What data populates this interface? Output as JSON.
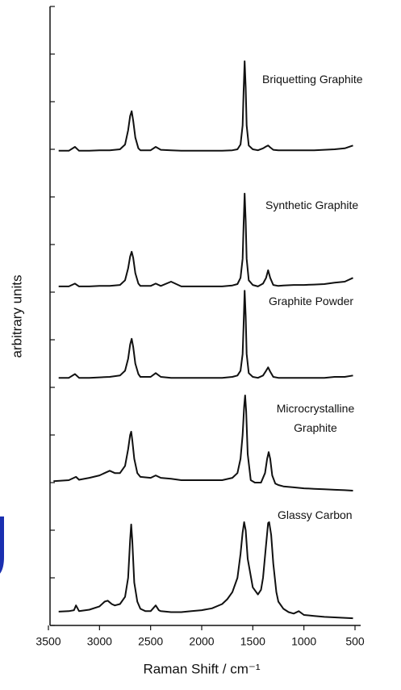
{
  "chart_data": {
    "type": "line",
    "xlabel": "Raman Shift / cm⁻¹",
    "ylabel": "arbitrary units",
    "xlim": [
      3500,
      500
    ],
    "xticks": [
      3500,
      3000,
      2500,
      2000,
      1500,
      1000,
      500
    ],
    "ylim": [
      0,
      13
    ],
    "yticks": [
      0,
      1,
      2,
      3,
      4,
      5,
      6,
      7,
      8,
      9,
      10,
      11,
      12,
      13
    ],
    "ytick_labels": false,
    "color": "#111111",
    "series": [
      {
        "name": "Briquetting Graphite",
        "color": "#111111",
        "x": [
          3400,
          3300,
          3240,
          3200,
          3100,
          3000,
          2900,
          2800,
          2750,
          2720,
          2700,
          2685,
          2670,
          2650,
          2620,
          2600,
          2500,
          2450,
          2400,
          2300,
          2200,
          2100,
          2000,
          1900,
          1800,
          1700,
          1650,
          1620,
          1600,
          1590,
          1580,
          1570,
          1560,
          1540,
          1500,
          1450,
          1400,
          1370,
          1350,
          1330,
          1300,
          1250,
          1200,
          1100,
          1000,
          900,
          800,
          700,
          600,
          520
        ],
        "values": [
          9.97,
          9.97,
          10.05,
          9.97,
          9.97,
          9.98,
          9.98,
          10.0,
          10.1,
          10.4,
          10.7,
          10.8,
          10.6,
          10.25,
          10.02,
          9.98,
          9.98,
          10.05,
          9.99,
          9.98,
          9.97,
          9.97,
          9.97,
          9.97,
          9.97,
          9.98,
          10.0,
          10.1,
          10.5,
          11.2,
          11.85,
          11.3,
          10.5,
          10.08,
          10.0,
          9.98,
          10.02,
          10.06,
          10.08,
          10.04,
          9.99,
          9.98,
          9.98,
          9.98,
          9.98,
          9.98,
          9.99,
          10.0,
          10.02,
          10.08
        ]
      },
      {
        "name": "Synthetic Graphite",
        "color": "#111111",
        "x": [
          3400,
          3300,
          3240,
          3200,
          3100,
          3000,
          2900,
          2800,
          2750,
          2720,
          2700,
          2685,
          2670,
          2650,
          2620,
          2600,
          2500,
          2450,
          2400,
          2300,
          2200,
          2100,
          2000,
          1900,
          1800,
          1700,
          1650,
          1620,
          1600,
          1590,
          1580,
          1570,
          1560,
          1540,
          1500,
          1450,
          1400,
          1370,
          1350,
          1330,
          1300,
          1250,
          1200,
          1100,
          1000,
          900,
          800,
          700,
          600,
          520
        ],
        "values": [
          7.12,
          7.12,
          7.18,
          7.12,
          7.12,
          7.13,
          7.13,
          7.15,
          7.25,
          7.5,
          7.75,
          7.85,
          7.72,
          7.4,
          7.18,
          7.13,
          7.13,
          7.18,
          7.13,
          7.22,
          7.12,
          7.12,
          7.12,
          7.12,
          7.12,
          7.14,
          7.17,
          7.3,
          7.7,
          8.4,
          9.07,
          8.5,
          7.7,
          7.25,
          7.15,
          7.12,
          7.18,
          7.3,
          7.46,
          7.3,
          7.15,
          7.13,
          7.14,
          7.15,
          7.15,
          7.16,
          7.17,
          7.2,
          7.22,
          7.3
        ]
      },
      {
        "name": "Graphite Powder",
        "color": "#111111",
        "x": [
          3400,
          3300,
          3240,
          3200,
          3100,
          3000,
          2900,
          2800,
          2750,
          2720,
          2700,
          2685,
          2670,
          2650,
          2620,
          2600,
          2500,
          2450,
          2400,
          2300,
          2200,
          2100,
          2000,
          1900,
          1800,
          1700,
          1650,
          1620,
          1600,
          1590,
          1580,
          1570,
          1560,
          1540,
          1500,
          1450,
          1400,
          1370,
          1350,
          1330,
          1300,
          1250,
          1200,
          1100,
          1000,
          900,
          800,
          700,
          600,
          520
        ],
        "values": [
          5.2,
          5.2,
          5.28,
          5.2,
          5.2,
          5.21,
          5.22,
          5.25,
          5.35,
          5.6,
          5.9,
          6.02,
          5.85,
          5.5,
          5.28,
          5.22,
          5.22,
          5.3,
          5.22,
          5.2,
          5.2,
          5.2,
          5.2,
          5.2,
          5.2,
          5.22,
          5.25,
          5.35,
          5.7,
          6.3,
          7.03,
          6.5,
          5.7,
          5.3,
          5.22,
          5.2,
          5.25,
          5.35,
          5.42,
          5.33,
          5.22,
          5.2,
          5.2,
          5.2,
          5.2,
          5.2,
          5.2,
          5.22,
          5.22,
          5.25
        ]
      },
      {
        "name": "Microcrystalline Graphite",
        "color": "#111111",
        "x": [
          3450,
          3300,
          3230,
          3200,
          3100,
          3000,
          2900,
          2850,
          2800,
          2750,
          2720,
          2700,
          2690,
          2680,
          2660,
          2630,
          2600,
          2500,
          2450,
          2400,
          2300,
          2200,
          2100,
          2000,
          1900,
          1800,
          1700,
          1650,
          1620,
          1600,
          1585,
          1575,
          1565,
          1550,
          1520,
          1480,
          1420,
          1380,
          1360,
          1345,
          1330,
          1310,
          1280,
          1250,
          1200,
          1100,
          1000,
          900,
          800,
          700,
          600,
          520
        ],
        "values": [
          3.03,
          3.05,
          3.12,
          3.06,
          3.1,
          3.15,
          3.25,
          3.2,
          3.2,
          3.35,
          3.7,
          4.0,
          4.07,
          3.9,
          3.5,
          3.2,
          3.12,
          3.1,
          3.15,
          3.1,
          3.08,
          3.05,
          3.05,
          3.05,
          3.05,
          3.05,
          3.1,
          3.2,
          3.5,
          4.0,
          4.6,
          4.83,
          4.5,
          3.6,
          3.05,
          3.0,
          3.0,
          3.2,
          3.5,
          3.64,
          3.5,
          3.15,
          2.98,
          2.95,
          2.92,
          2.9,
          2.88,
          2.87,
          2.86,
          2.85,
          2.84,
          2.83
        ]
      },
      {
        "name": "Glassy Carbon",
        "color": "#111111",
        "x": [
          3400,
          3300,
          3250,
          3230,
          3200,
          3100,
          3000,
          2950,
          2920,
          2880,
          2850,
          2800,
          2750,
          2720,
          2700,
          2690,
          2680,
          2660,
          2630,
          2600,
          2550,
          2500,
          2450,
          2420,
          2400,
          2300,
          2200,
          2100,
          2000,
          1900,
          1800,
          1750,
          1700,
          1650,
          1620,
          1600,
          1585,
          1570,
          1550,
          1500,
          1450,
          1420,
          1400,
          1370,
          1350,
          1340,
          1320,
          1300,
          1270,
          1250,
          1200,
          1150,
          1100,
          1050,
          1000,
          900,
          800,
          700,
          600,
          520
        ],
        "values": [
          0.29,
          0.3,
          0.32,
          0.42,
          0.3,
          0.33,
          0.4,
          0.5,
          0.52,
          0.45,
          0.42,
          0.45,
          0.6,
          1.0,
          1.8,
          2.12,
          1.8,
          0.9,
          0.5,
          0.35,
          0.3,
          0.3,
          0.42,
          0.32,
          0.3,
          0.28,
          0.28,
          0.3,
          0.32,
          0.36,
          0.45,
          0.55,
          0.7,
          1.0,
          1.5,
          1.95,
          2.17,
          2.0,
          1.4,
          0.8,
          0.65,
          0.75,
          1.0,
          1.7,
          2.15,
          2.17,
          1.9,
          1.3,
          0.7,
          0.5,
          0.35,
          0.28,
          0.25,
          0.3,
          0.22,
          0.2,
          0.18,
          0.17,
          0.16,
          0.15
        ]
      }
    ]
  }
}
